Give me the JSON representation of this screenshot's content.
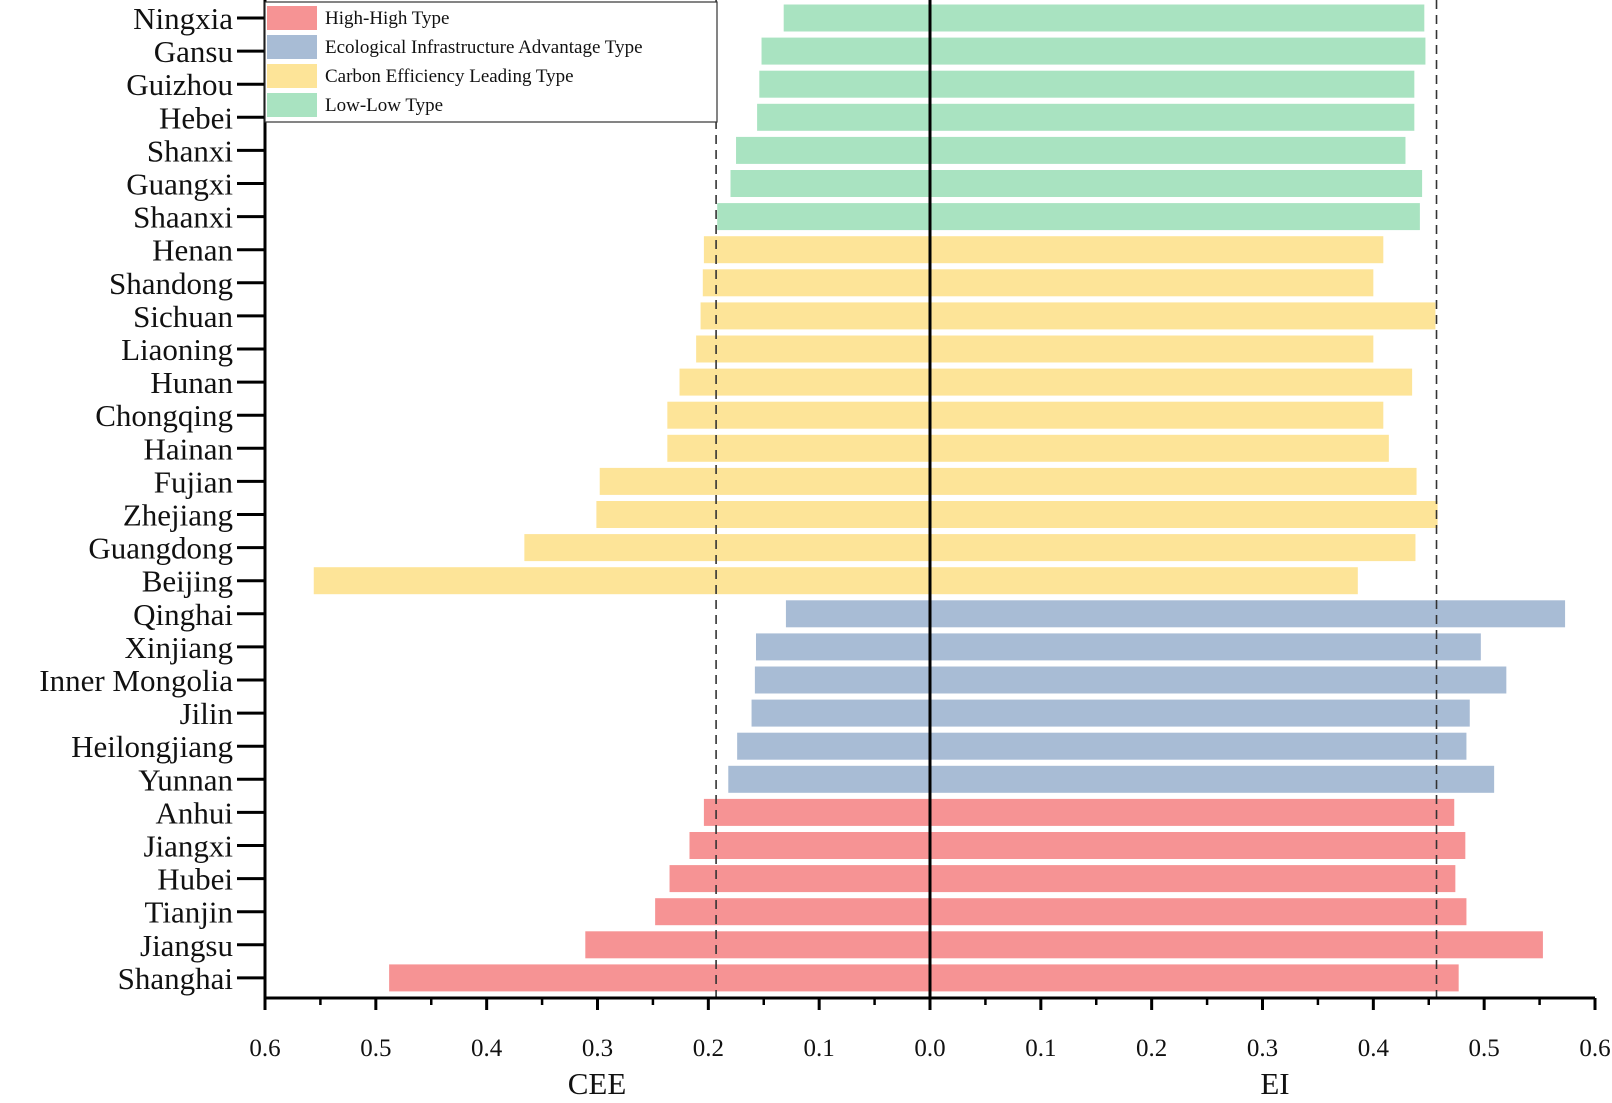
{
  "chart_data": {
    "type": "bar",
    "orientation": "horizontal-diverging",
    "categories": [
      "Ningxia",
      "Gansu",
      "Guizhou",
      "Hebei",
      "Shanxi",
      "Guangxi",
      "Shaanxi",
      "Henan",
      "Shandong",
      "Sichuan",
      "Liaoning",
      "Hunan",
      "Chongqing",
      "Hainan",
      "Fujian",
      "Zhejiang",
      "Guangdong",
      "Beijing",
      "Qinghai",
      "Xinjiang",
      "Inner Mongolia",
      "Jilin",
      "Heilongjiang",
      "Yunnan",
      "Anhui",
      "Jiangxi",
      "Hubei",
      "Tianjin",
      "Jiangsu",
      "Shanghai"
    ],
    "groups": [
      "Low-Low Type",
      "Low-Low Type",
      "Low-Low Type",
      "Low-Low Type",
      "Low-Low Type",
      "Low-Low Type",
      "Low-Low Type",
      "Carbon Efficiency Leading Type",
      "Carbon Efficiency Leading Type",
      "Carbon Efficiency Leading Type",
      "Carbon Efficiency Leading Type",
      "Carbon Efficiency Leading Type",
      "Carbon Efficiency Leading Type",
      "Carbon Efficiency Leading Type",
      "Carbon Efficiency Leading Type",
      "Carbon Efficiency Leading Type",
      "Carbon Efficiency Leading Type",
      "Carbon Efficiency Leading Type",
      "Ecological Infrastructure Advantage Type",
      "Ecological Infrastructure Advantage Type",
      "Ecological Infrastructure Advantage Type",
      "Ecological Infrastructure Advantage Type",
      "Ecological Infrastructure Advantage Type",
      "Ecological Infrastructure Advantage Type",
      "High-High Type",
      "High-High Type",
      "High-High Type",
      "High-High Type",
      "High-High Type",
      "High-High Type"
    ],
    "series": [
      {
        "key": "CEE",
        "values": [
          0.132,
          0.152,
          0.154,
          0.156,
          0.175,
          0.18,
          0.192,
          0.204,
          0.205,
          0.207,
          0.211,
          0.226,
          0.237,
          0.237,
          0.298,
          0.301,
          0.366,
          0.556,
          0.13,
          0.157,
          0.158,
          0.161,
          0.174,
          0.182,
          0.204,
          0.217,
          0.235,
          0.248,
          0.311,
          0.488
        ]
      },
      {
        "key": "EI",
        "values": [
          0.446,
          0.447,
          0.437,
          0.437,
          0.429,
          0.444,
          0.442,
          0.409,
          0.4,
          0.456,
          0.4,
          0.435,
          0.409,
          0.414,
          0.439,
          0.458,
          0.438,
          0.386,
          0.573,
          0.497,
          0.52,
          0.487,
          0.484,
          0.509,
          0.473,
          0.483,
          0.474,
          0.484,
          0.553,
          0.477
        ]
      }
    ],
    "legend": [
      {
        "name": "High-High Type",
        "color": "#f69394"
      },
      {
        "name": "Ecological Infrastructure Advantage Type",
        "color": "#a8bcd5"
      },
      {
        "name": "Carbon Efficiency Leading Type",
        "color": "#fde498"
      },
      {
        "name": "Low-Low Type",
        "color": "#a9e3c1"
      }
    ],
    "legend_position": "top-left",
    "xlabel_left": "CEE",
    "xlabel_right": "EI",
    "xlim_left": [
      0,
      0.6
    ],
    "xlim_right": [
      0,
      0.6
    ],
    "ticks": [
      "0.6",
      "0.5",
      "0.4",
      "0.3",
      "0.2",
      "0.1",
      "0.0",
      "0.1",
      "0.2",
      "0.3",
      "0.4",
      "0.5",
      "0.6"
    ],
    "reference_lines": {
      "CEE": 0.193,
      "EI": 0.457
    },
    "grid": false
  }
}
